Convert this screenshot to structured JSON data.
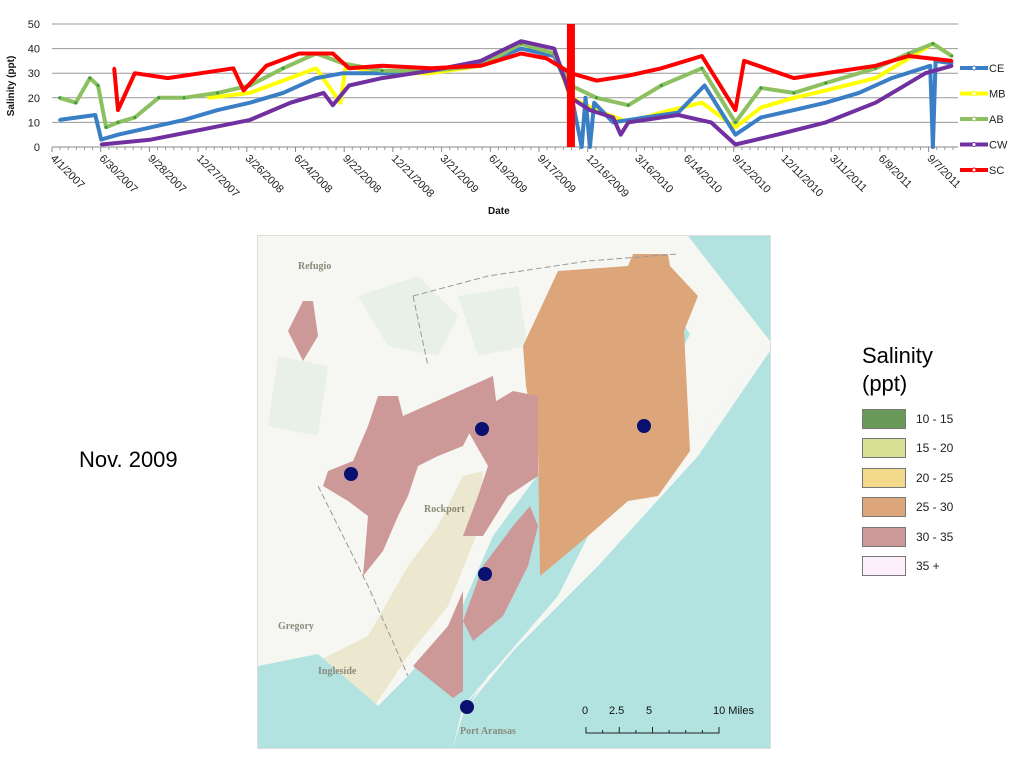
{
  "chart_data": {
    "type": "line",
    "xlabel": "Date",
    "ylabel": "Salinity (ppt)",
    "ylim": [
      0,
      50
    ],
    "yticks": [
      0,
      10,
      20,
      30,
      40,
      50
    ],
    "xticks": [
      "4/1/2007",
      "6/30/2007",
      "9/28/2007",
      "12/27/2007",
      "3/26/2008",
      "6/24/2008",
      "9/22/2008",
      "12/21/2008",
      "3/21/2009",
      "6/19/2009",
      "9/17/2009",
      "12/16/2009",
      "3/16/2010",
      "6/14/2010",
      "9/12/2010",
      "12/11/2010",
      "3/11/2011",
      "6/9/2011",
      "9/7/2011"
    ],
    "xlim": [
      "2007-04-01",
      "2011-10-30"
    ],
    "grid": true,
    "legend_position": "right",
    "highlight_date": "2009-11-15",
    "highlight_color": "#ff0000",
    "series": [
      {
        "name": "MB",
        "color": "#ffff00",
        "points": [
          [
            "2008-01-15",
            20
          ],
          [
            "2008-04-01",
            22
          ],
          [
            "2008-06-01",
            27
          ],
          [
            "2008-08-01",
            32
          ],
          [
            "2008-09-15",
            18
          ],
          [
            "2008-09-25",
            33
          ],
          [
            "2008-12-01",
            30
          ],
          [
            "2009-03-01",
            30
          ],
          [
            "2009-06-01",
            33
          ],
          [
            "2009-08-15",
            42
          ],
          [
            "2009-10-15",
            38
          ],
          [
            "2009-11-15",
            20
          ],
          [
            "2010-01-01",
            15
          ],
          [
            "2010-03-01",
            10
          ],
          [
            "2010-05-01",
            14
          ],
          [
            "2010-07-15",
            18
          ],
          [
            "2010-09-15",
            8
          ],
          [
            "2010-11-01",
            16
          ],
          [
            "2011-01-01",
            20
          ],
          [
            "2011-03-01",
            23
          ],
          [
            "2011-06-01",
            28
          ],
          [
            "2011-08-01",
            36
          ],
          [
            "2011-09-15",
            42
          ],
          [
            "2011-10-20",
            37
          ]
        ]
      },
      {
        "name": "CE",
        "color": "#3a7ec6",
        "points": [
          [
            "2007-04-15",
            11
          ],
          [
            "2007-06-20",
            13
          ],
          [
            "2007-07-01",
            3
          ],
          [
            "2007-08-01",
            5
          ],
          [
            "2007-10-01",
            8
          ],
          [
            "2007-12-01",
            11
          ],
          [
            "2008-02-01",
            15
          ],
          [
            "2008-04-01",
            18
          ],
          [
            "2008-06-01",
            22
          ],
          [
            "2008-08-01",
            28
          ],
          [
            "2008-09-20",
            30
          ],
          [
            "2008-12-01",
            30
          ],
          [
            "2009-03-01",
            31
          ],
          [
            "2009-06-01",
            34
          ],
          [
            "2009-08-15",
            40
          ],
          [
            "2009-10-15",
            37
          ],
          [
            "2009-11-15",
            22
          ],
          [
            "2009-12-05",
            0
          ],
          [
            "2009-12-12",
            20
          ],
          [
            "2009-12-20",
            0
          ],
          [
            "2009-12-28",
            18
          ],
          [
            "2010-02-01",
            10
          ],
          [
            "2010-04-01",
            12
          ],
          [
            "2010-06-01",
            14
          ],
          [
            "2010-07-20",
            25
          ],
          [
            "2010-09-15",
            5
          ],
          [
            "2010-11-01",
            12
          ],
          [
            "2011-01-01",
            15
          ],
          [
            "2011-03-01",
            18
          ],
          [
            "2011-05-01",
            22
          ],
          [
            "2011-07-01",
            28
          ],
          [
            "2011-09-10",
            33
          ],
          [
            "2011-09-15",
            0
          ],
          [
            "2011-09-20",
            35
          ],
          [
            "2011-10-20",
            34
          ]
        ]
      },
      {
        "name": "AB",
        "color": "#8cc060",
        "points": [
          [
            "2007-04-15",
            20
          ],
          [
            "2007-05-15",
            18
          ],
          [
            "2007-06-10",
            28
          ],
          [
            "2007-06-25",
            25
          ],
          [
            "2007-07-10",
            8
          ],
          [
            "2007-08-01",
            10
          ],
          [
            "2007-09-01",
            12
          ],
          [
            "2007-10-15",
            20
          ],
          [
            "2007-12-01",
            20
          ],
          [
            "2008-02-01",
            22
          ],
          [
            "2008-04-01",
            25
          ],
          [
            "2008-06-01",
            32
          ],
          [
            "2008-08-01",
            38
          ],
          [
            "2008-09-20",
            34
          ],
          [
            "2008-12-01",
            31
          ],
          [
            "2009-03-01",
            31
          ],
          [
            "2009-06-01",
            33
          ],
          [
            "2009-08-15",
            42
          ],
          [
            "2009-10-15",
            38
          ],
          [
            "2009-11-15",
            25
          ],
          [
            "2010-01-01",
            20
          ],
          [
            "2010-03-01",
            17
          ],
          [
            "2010-05-01",
            25
          ],
          [
            "2010-07-15",
            32
          ],
          [
            "2010-09-15",
            10
          ],
          [
            "2010-11-01",
            24
          ],
          [
            "2011-01-01",
            22
          ],
          [
            "2011-03-01",
            26
          ],
          [
            "2011-06-01",
            32
          ],
          [
            "2011-08-01",
            38
          ],
          [
            "2011-09-15",
            42
          ],
          [
            "2011-10-20",
            37
          ]
        ]
      },
      {
        "name": "CW",
        "color": "#7030a0",
        "points": [
          [
            "2007-07-01",
            1
          ],
          [
            "2007-10-01",
            3
          ],
          [
            "2008-01-01",
            7
          ],
          [
            "2008-04-01",
            11
          ],
          [
            "2008-06-15",
            18
          ],
          [
            "2008-08-15",
            22
          ],
          [
            "2008-09-01",
            17
          ],
          [
            "2008-10-01",
            25
          ],
          [
            "2008-12-01",
            28
          ],
          [
            "2009-03-01",
            31
          ],
          [
            "2009-06-01",
            35
          ],
          [
            "2009-08-15",
            43
          ],
          [
            "2009-10-15",
            40
          ],
          [
            "2009-11-15",
            20
          ],
          [
            "2009-12-20",
            15
          ],
          [
            "2010-02-01",
            12
          ],
          [
            "2010-02-15",
            5
          ],
          [
            "2010-03-01",
            10
          ],
          [
            "2010-06-01",
            13
          ],
          [
            "2010-08-01",
            10
          ],
          [
            "2010-09-15",
            1
          ],
          [
            "2010-12-01",
            5
          ],
          [
            "2011-03-01",
            10
          ],
          [
            "2011-06-01",
            18
          ],
          [
            "2011-09-01",
            30
          ],
          [
            "2011-10-20",
            33
          ]
        ]
      },
      {
        "name": "SC",
        "color": "#ff0000",
        "points": [
          [
            "2007-07-25",
            32
          ],
          [
            "2007-08-01",
            15
          ],
          [
            "2007-09-01",
            30
          ],
          [
            "2007-11-01",
            28
          ],
          [
            "2008-01-01",
            30
          ],
          [
            "2008-03-01",
            32
          ],
          [
            "2008-03-20",
            23
          ],
          [
            "2008-05-01",
            33
          ],
          [
            "2008-07-01",
            38
          ],
          [
            "2008-09-01",
            38
          ],
          [
            "2008-10-01",
            32
          ],
          [
            "2008-12-01",
            33
          ],
          [
            "2009-03-01",
            32
          ],
          [
            "2009-06-01",
            33
          ],
          [
            "2009-08-15",
            38
          ],
          [
            "2009-10-01",
            36
          ],
          [
            "2009-11-15",
            30
          ],
          [
            "2010-01-01",
            27
          ],
          [
            "2010-03-01",
            29
          ],
          [
            "2010-05-01",
            32
          ],
          [
            "2010-07-15",
            37
          ],
          [
            "2010-09-15",
            15
          ],
          [
            "2010-10-01",
            35
          ],
          [
            "2011-01-01",
            28
          ],
          [
            "2011-03-01",
            30
          ],
          [
            "2011-06-01",
            33
          ],
          [
            "2011-08-01",
            37
          ],
          [
            "2011-10-20",
            35
          ]
        ]
      }
    ],
    "legend_order": [
      "CE",
      "MB",
      "AB",
      "CW",
      "SC"
    ]
  },
  "period_label": "Nov. 2009",
  "map": {
    "places": [
      "Refugio",
      "Rockport",
      "Gregory",
      "Ingleside",
      "Port Aransas"
    ],
    "scale": [
      "0",
      "2.5",
      "5",
      "10 Miles"
    ],
    "station_color": "#0a1070"
  },
  "map_legend": {
    "title_line1": "Salinity",
    "title_line2": "(ppt)",
    "classes": [
      {
        "label": "10 - 15",
        "color": "#6a9a5a"
      },
      {
        "label": "15 - 20",
        "color": "#d8e095"
      },
      {
        "label": "20 - 25",
        "color": "#f3d98c"
      },
      {
        "label": "25 - 30",
        "color": "#dca67a"
      },
      {
        "label": "30 - 35",
        "color": "#cd9898"
      },
      {
        "label": "35 +",
        "color": "#fdf0fa"
      }
    ]
  }
}
